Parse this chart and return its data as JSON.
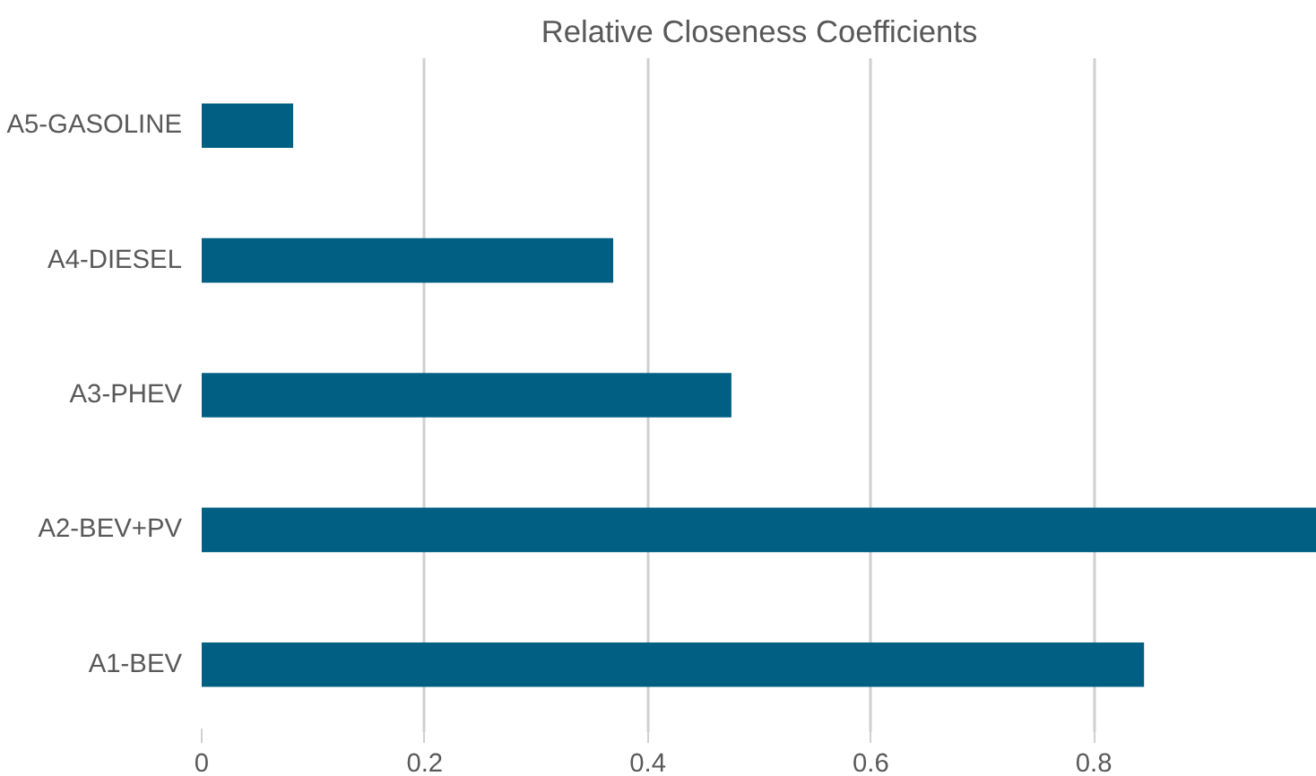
{
  "chart_data": {
    "type": "bar",
    "orientation": "horizontal",
    "title": "Relative Closeness Coefficients",
    "categories": [
      "A5-GASOLINE",
      "A4-DIESEL",
      "A3-PHEV",
      "A2-BEV+PV",
      "A1-BEV"
    ],
    "values": [
      0.082,
      0.369,
      0.475,
      1.0,
      0.845
    ],
    "color": "#005f83",
    "xlim": [
      0,
      1
    ],
    "xticks": [
      0,
      0.2,
      0.4,
      0.6,
      0.8
    ],
    "grid": "x"
  }
}
